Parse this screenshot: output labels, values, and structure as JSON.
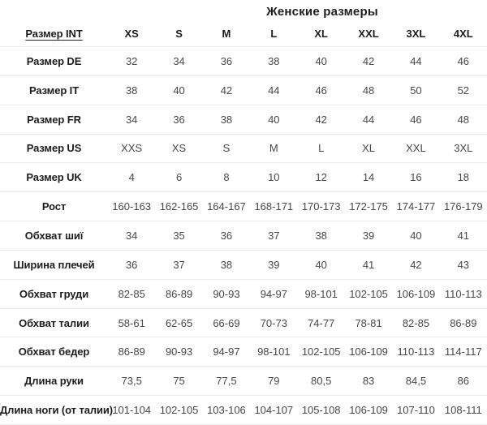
{
  "title": "Женские размеры",
  "chart_data": {
    "type": "table",
    "title": "Женские размеры",
    "columns": [
      "Размер INT",
      "XS",
      "S",
      "M",
      "L",
      "XL",
      "XXL",
      "3XL",
      "4XL"
    ],
    "rows": [
      {
        "label": "Размер DE",
        "values": [
          "32",
          "34",
          "36",
          "38",
          "40",
          "42",
          "44",
          "46"
        ]
      },
      {
        "label": "Размер IT",
        "values": [
          "38",
          "40",
          "42",
          "44",
          "46",
          "48",
          "50",
          "52"
        ]
      },
      {
        "label": "Размер FR",
        "values": [
          "34",
          "36",
          "38",
          "40",
          "42",
          "44",
          "46",
          "48"
        ]
      },
      {
        "label": "Размер US",
        "values": [
          "XXS",
          "XS",
          "S",
          "M",
          "L",
          "XL",
          "XXL",
          "3XL"
        ]
      },
      {
        "label": "Размер UK",
        "values": [
          "4",
          "6",
          "8",
          "10",
          "12",
          "14",
          "16",
          "18"
        ]
      },
      {
        "label": "Рост",
        "values": [
          "160-163",
          "162-165",
          "164-167",
          "168-171",
          "170-173",
          "172-175",
          "174-177",
          "176-179"
        ]
      },
      {
        "label": "Обхват шиї",
        "values": [
          "34",
          "35",
          "36",
          "37",
          "38",
          "39",
          "40",
          "41"
        ]
      },
      {
        "label": "Ширина плечей",
        "values": [
          "36",
          "37",
          "38",
          "39",
          "40",
          "41",
          "42",
          "43"
        ]
      },
      {
        "label": "Обхват груди",
        "values": [
          "82-85",
          "86-89",
          "90-93",
          "94-97",
          "98-101",
          "102-105",
          "106-109",
          "110-113"
        ]
      },
      {
        "label": "Обхват талии",
        "values": [
          "58-61",
          "62-65",
          "66-69",
          "70-73",
          "74-77",
          "78-81",
          "82-85",
          "86-89"
        ]
      },
      {
        "label": "Обхват бедер",
        "values": [
          "86-89",
          "90-93",
          "94-97",
          "98-101",
          "102-105",
          "106-109",
          "110-113",
          "114-117"
        ]
      },
      {
        "label": "Длина руки",
        "values": [
          "73,5",
          "75",
          "77,5",
          "79",
          "80,5",
          "83",
          "84,5",
          "86"
        ]
      },
      {
        "label": "Длина ноги (от талии)",
        "values": [
          "101-104",
          "102-105",
          "103-106",
          "104-107",
          "105-108",
          "106-109",
          "107-110",
          "108-111"
        ]
      }
    ]
  },
  "colors": {
    "background": "#ffffff",
    "divider": "#ebebeb",
    "label_text": "#1c1c1c",
    "value_text": "#474747"
  }
}
